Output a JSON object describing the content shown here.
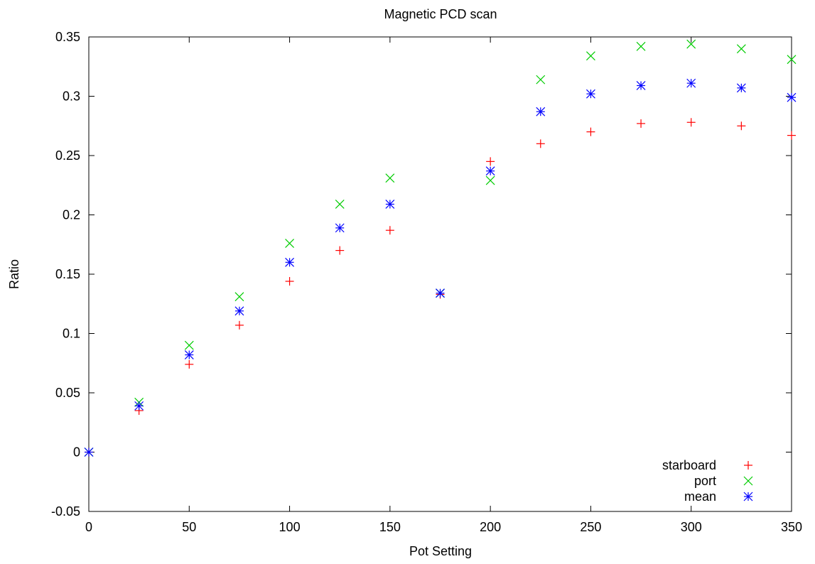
{
  "chart_data": {
    "type": "scatter",
    "title": "Magnetic PCD scan",
    "xlabel": "Pot Setting",
    "ylabel": "Ratio",
    "xlim": [
      0,
      350
    ],
    "ylim": [
      -0.05,
      0.35
    ],
    "xticks": [
      "0",
      "50",
      "100",
      "150",
      "200",
      "250",
      "300",
      "350"
    ],
    "yticks": [
      "-0.05",
      "0",
      "0.05",
      "0.1",
      "0.15",
      "0.2",
      "0.25",
      "0.3",
      "0.35"
    ],
    "grid": false,
    "legend_position": "bottom-right",
    "x": [
      0,
      25,
      50,
      75,
      100,
      125,
      150,
      175,
      200,
      225,
      250,
      275,
      300,
      325,
      350
    ],
    "series": [
      {
        "name": "starboard",
        "marker": "plus",
        "color": "#ff0000",
        "values": [
          0,
          0.035,
          0.074,
          0.107,
          0.144,
          0.17,
          0.187,
          0.133,
          0.245,
          0.26,
          0.27,
          0.277,
          0.278,
          0.275,
          0.267
        ]
      },
      {
        "name": "port",
        "marker": "cross",
        "color": "#00cc00",
        "values": [
          0,
          0.042,
          0.09,
          0.131,
          0.176,
          0.209,
          0.231,
          0.134,
          0.229,
          0.314,
          0.334,
          0.342,
          0.344,
          0.34,
          0.331
        ]
      },
      {
        "name": "mean",
        "marker": "star",
        "color": "#0000ff",
        "values": [
          0,
          0.039,
          0.082,
          0.119,
          0.16,
          0.189,
          0.209,
          0.134,
          0.237,
          0.287,
          0.302,
          0.309,
          0.311,
          0.307,
          0.299
        ]
      }
    ]
  }
}
